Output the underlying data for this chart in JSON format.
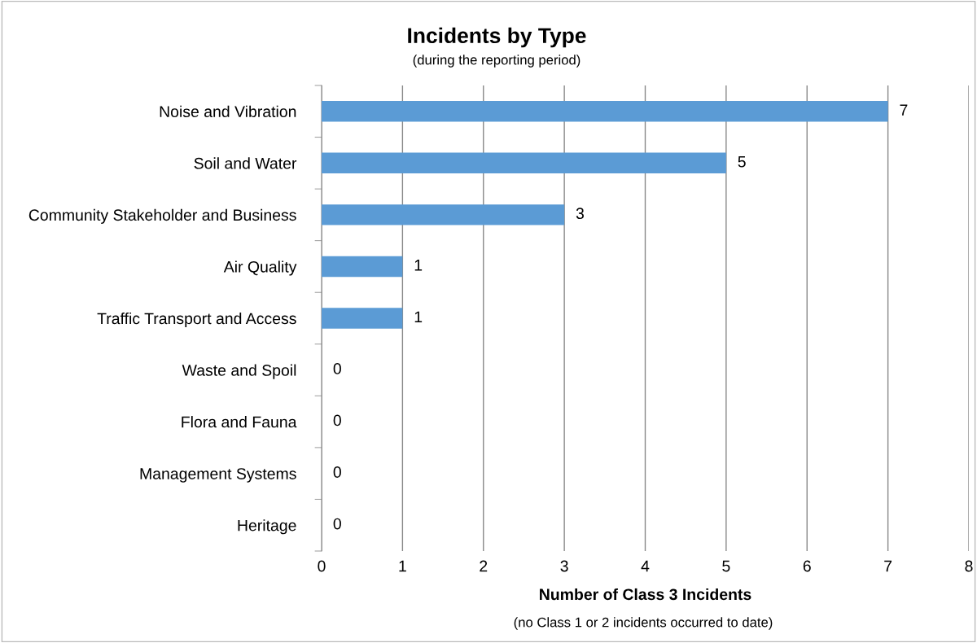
{
  "chart_data": {
    "type": "bar",
    "orientation": "horizontal",
    "title": "Incidents by Type",
    "subtitle": "(during the reporting period)",
    "categories": [
      "Noise and Vibration",
      "Soil and Water",
      "Community Stakeholder and Business",
      "Air Quality",
      "Traffic Transport and Access",
      "Waste and Spoil",
      "Flora and Fauna",
      "Management Systems",
      "Heritage"
    ],
    "values": [
      7,
      5,
      3,
      1,
      1,
      0,
      0,
      0,
      0
    ],
    "color": "#5b9bd5",
    "xlim": [
      0,
      8
    ],
    "xticks": [
      0,
      1,
      2,
      3,
      4,
      5,
      6,
      7,
      8
    ],
    "xlabel": "Number of Class 3 Incidents",
    "annotations": [
      "(no Class 1 or 2 incidents occurred to date)"
    ],
    "grid": "x",
    "data_labels": true
  }
}
